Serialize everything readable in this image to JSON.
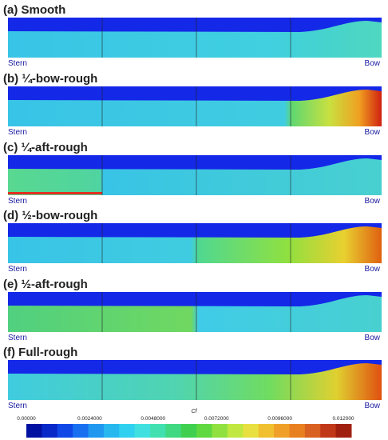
{
  "panels": [
    {
      "title": "(a) Smooth",
      "stern": "Stern",
      "bow": "Bow"
    },
    {
      "title": "(b) ¼-bow-rough",
      "stern": "Stern",
      "bow": "Bow"
    },
    {
      "title": "(c) ¼-aft-rough",
      "stern": "Stern",
      "bow": "Bow"
    },
    {
      "title": "(d) ½-bow-rough",
      "stern": "Stern",
      "bow": "Bow"
    },
    {
      "title": "(e) ½-aft-rough",
      "stern": "Stern",
      "bow": "Bow"
    },
    {
      "title": "(f) Full-rough",
      "stern": "Stern",
      "bow": "Bow"
    }
  ],
  "colorbar": {
    "label": "Cf",
    "ticks": [
      "0.00000",
      "0.0024000",
      "0.0048000",
      "0.0072000",
      "0.0096000",
      "0.012000"
    ]
  }
}
